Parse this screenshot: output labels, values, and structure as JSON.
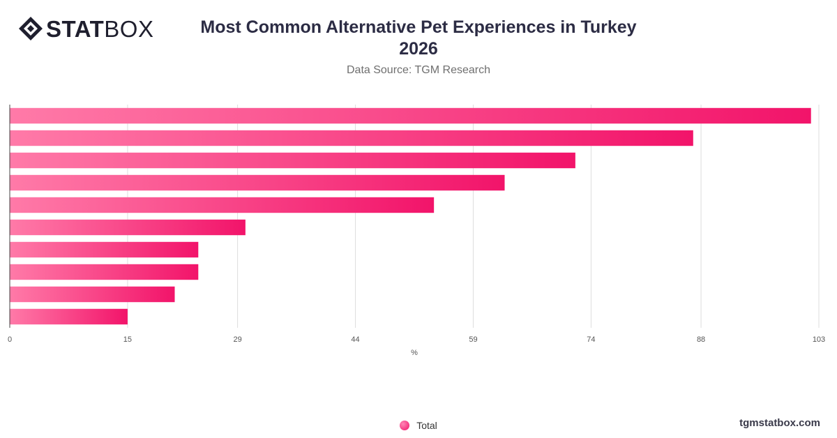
{
  "brand": {
    "logo_bold": "STAT",
    "logo_light": "BOX",
    "website": "tgmstatbox.com"
  },
  "header": {
    "title_line1": "Most Common Alternative Pet Experiences in Turkey",
    "title_line2": "2026",
    "subtitle": "Data Source: TGM Research"
  },
  "colors": {
    "bar_start": "#ff7aa8",
    "bar_end": "#f2146a",
    "grid": "#dddddd",
    "axis": "#444444"
  },
  "chart_data": {
    "type": "bar",
    "orientation": "horizontal",
    "title": "Most Common Alternative Pet Experiences in Turkey 2026",
    "subtitle": "Data Source: TGM Research",
    "xlabel": "%",
    "ylabel": "",
    "category_labels_visible": false,
    "xlim": [
      0,
      103
    ],
    "xticks": [
      0,
      15,
      29,
      44,
      59,
      74,
      88,
      103
    ],
    "grid": true,
    "legend_position": "bottom",
    "series": [
      {
        "name": "Total",
        "values": [
          102,
          87,
          72,
          63,
          54,
          30,
          24,
          24,
          21,
          15
        ]
      }
    ]
  },
  "legend": {
    "items": [
      "Total"
    ]
  }
}
